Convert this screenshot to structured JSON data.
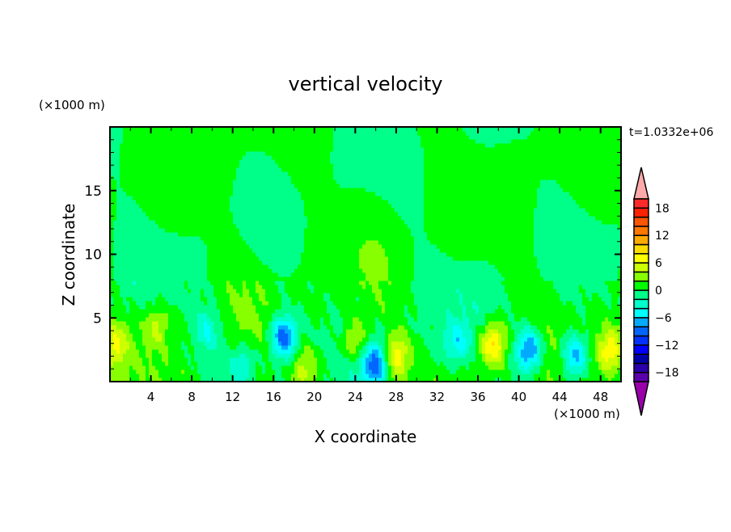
{
  "chart_data": {
    "type": "heatmap",
    "subtype": "filled-contour",
    "title": "vertical velocity",
    "xlabel": "X coordinate",
    "ylabel": "Z coordinate",
    "x_unit": "(×1000 m)",
    "y_unit": "(×1000 m)",
    "time_label": "t=1.0332e+06",
    "xlim": [
      0,
      50
    ],
    "ylim": [
      0,
      20
    ],
    "x_ticks": [
      4,
      8,
      12,
      16,
      20,
      24,
      28,
      32,
      36,
      40,
      44,
      48
    ],
    "y_ticks": [
      5,
      10,
      15
    ],
    "grid": false,
    "colorbar": {
      "placement": "right",
      "levels": [
        -20,
        -18,
        -16,
        -14,
        -12,
        -10,
        -8,
        -6,
        -4,
        -2,
        0,
        2,
        4,
        6,
        8,
        10,
        12,
        14,
        16,
        18,
        20
      ],
      "tick_labels": [
        "18",
        "12",
        "6",
        "0",
        "−6",
        "−12",
        "−18"
      ],
      "tick_values": [
        18,
        12,
        6,
        0,
        -6,
        -12,
        -18
      ],
      "colors": [
        "#5a00aa",
        "#2a00aa",
        "#0000aa",
        "#0000ff",
        "#0033ff",
        "#0066ff",
        "#00aaff",
        "#00ffff",
        "#00ffcc",
        "#00ff88",
        "#00ff00",
        "#88ff00",
        "#ccff00",
        "#ffff00",
        "#ffdd00",
        "#ffaa00",
        "#ff7700",
        "#ff5500",
        "#ff2200",
        "#ff2a2a"
      ],
      "under_color": "#9900aa",
      "over_color": "#ffaaaa"
    },
    "features": [
      {
        "x": 37.5,
        "z": 3.0,
        "value": 9
      },
      {
        "x": 28.0,
        "z": 2.0,
        "value": 7
      },
      {
        "x": 49.0,
        "z": 2.5,
        "value": 7
      },
      {
        "x": 24.0,
        "z": 3.2,
        "value": 6
      },
      {
        "x": 19.0,
        "z": 1.0,
        "value": 5
      },
      {
        "x": 0.5,
        "z": 3.0,
        "value": 5
      },
      {
        "x": 4.5,
        "z": 4.5,
        "value": 4
      },
      {
        "x": 41.0,
        "z": 2.5,
        "value": -10
      },
      {
        "x": 17.0,
        "z": 3.5,
        "value": -10
      },
      {
        "x": 26.0,
        "z": 1.5,
        "value": -9
      },
      {
        "x": 45.5,
        "z": 2.0,
        "value": -8
      },
      {
        "x": 9.5,
        "z": 4.0,
        "value": -4
      },
      {
        "x": 34.0,
        "z": 3.0,
        "value": -5
      },
      {
        "x": 13.0,
        "z": 1.5,
        "value": -4
      }
    ]
  }
}
